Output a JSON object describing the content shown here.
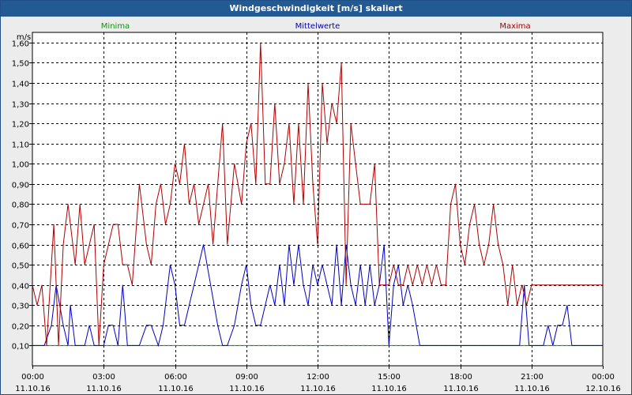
{
  "window": {
    "title": "Windgeschwindigkeit [m/s] skaliert"
  },
  "colors": {
    "minima": "#00a000",
    "mittelwerte": "#0000c0",
    "maxima": "#b00000",
    "grid": "#000000",
    "plot_bg": "#ffffff"
  },
  "chart_data": {
    "type": "line",
    "title": "Windgeschwindigkeit [m/s] skaliert",
    "ylabel": "m/s",
    "xlabel": "",
    "ylim": [
      0.0,
      1.65
    ],
    "xlim": [
      0,
      24
    ],
    "y_ticks": [
      "0,10",
      "0,20",
      "0,30",
      "0,40",
      "0,50",
      "0,60",
      "0,70",
      "0,80",
      "0,90",
      "1,00",
      "1,10",
      "1,20",
      "1,30",
      "1,40",
      "1,50",
      "1,60"
    ],
    "y_tick_values": [
      0.1,
      0.2,
      0.3,
      0.4,
      0.5,
      0.6,
      0.7,
      0.8,
      0.9,
      1.0,
      1.1,
      1.2,
      1.3,
      1.4,
      1.5,
      1.6
    ],
    "x_ticks": [
      {
        "time": "00:00",
        "date": "11.10.16"
      },
      {
        "time": "03:00",
        "date": "11.10.16"
      },
      {
        "time": "06:00",
        "date": "11.10.16"
      },
      {
        "time": "09:00",
        "date": "11.10.16"
      },
      {
        "time": "12:00",
        "date": "11.10.16"
      },
      {
        "time": "15:00",
        "date": "11.10.16"
      },
      {
        "time": "18:00",
        "date": "11.10.16"
      },
      {
        "time": "21:00",
        "date": "11.10.16"
      },
      {
        "time": "00:00",
        "date": "12.10.16"
      }
    ],
    "x_tick_hours": [
      0,
      3,
      6,
      9,
      12,
      15,
      18,
      21,
      24
    ],
    "grid": true,
    "legend_position": "top",
    "series": [
      {
        "name": "Minima",
        "x": [
          0,
          24
        ],
        "values": [
          0.1,
          0.1
        ]
      },
      {
        "name": "Mittelwerte",
        "x": [
          0,
          0.5,
          0.8,
          1.0,
          1.3,
          1.5,
          1.6,
          1.8,
          2.0,
          2.2,
          2.4,
          2.6,
          2.8,
          3.0,
          3.2,
          3.4,
          3.6,
          3.8,
          4.0,
          4.5,
          4.8,
          5.0,
          5.3,
          5.5,
          5.8,
          6.0,
          6.2,
          6.4,
          6.6,
          6.8,
          7.0,
          7.2,
          7.5,
          7.8,
          8.0,
          8.2,
          8.5,
          8.8,
          9.0,
          9.2,
          9.4,
          9.6,
          9.8,
          10.0,
          10.2,
          10.4,
          10.6,
          10.8,
          11.0,
          11.2,
          11.4,
          11.6,
          11.8,
          12.0,
          12.2,
          12.4,
          12.6,
          12.8,
          13.0,
          13.2,
          13.4,
          13.6,
          13.8,
          14.0,
          14.2,
          14.4,
          14.6,
          14.8,
          15.0,
          15.2,
          15.4,
          15.6,
          15.8,
          16.0,
          16.3,
          16.6,
          17.0,
          17.4,
          17.8,
          18.5,
          19.5,
          20.5,
          20.7,
          20.9,
          21.1,
          21.3,
          21.5,
          21.7,
          21.9,
          22.1,
          22.3,
          22.5,
          22.7,
          24
        ],
        "values": [
          0.1,
          0.1,
          0.2,
          0.4,
          0.2,
          0.1,
          0.3,
          0.1,
          0.1,
          0.1,
          0.2,
          0.1,
          0.1,
          0.1,
          0.2,
          0.2,
          0.1,
          0.4,
          0.1,
          0.1,
          0.2,
          0.2,
          0.1,
          0.2,
          0.5,
          0.4,
          0.2,
          0.2,
          0.3,
          0.4,
          0.5,
          0.6,
          0.4,
          0.2,
          0.1,
          0.1,
          0.2,
          0.4,
          0.5,
          0.3,
          0.2,
          0.2,
          0.3,
          0.4,
          0.3,
          0.5,
          0.3,
          0.6,
          0.4,
          0.6,
          0.4,
          0.3,
          0.5,
          0.4,
          0.5,
          0.4,
          0.3,
          0.6,
          0.3,
          0.6,
          0.4,
          0.3,
          0.5,
          0.3,
          0.5,
          0.3,
          0.4,
          0.6,
          0.1,
          0.4,
          0.5,
          0.3,
          0.4,
          0.3,
          0.1,
          0.1,
          0.1,
          0.1,
          0.1,
          0.1,
          0.1,
          0.1,
          0.4,
          0.1,
          0.1,
          0.1,
          0.1,
          0.2,
          0.1,
          0.2,
          0.2,
          0.3,
          0.1,
          0.1
        ]
      },
      {
        "name": "Maxima",
        "x": [
          0,
          0.2,
          0.4,
          0.6,
          0.9,
          1.1,
          1.3,
          1.5,
          1.8,
          2.0,
          2.2,
          2.4,
          2.6,
          2.8,
          3.0,
          3.2,
          3.4,
          3.6,
          3.8,
          4.0,
          4.2,
          4.5,
          4.8,
          5.0,
          5.2,
          5.4,
          5.6,
          5.8,
          6.0,
          6.2,
          6.4,
          6.6,
          6.8,
          7.0,
          7.2,
          7.4,
          7.6,
          7.8,
          8.0,
          8.2,
          8.5,
          8.8,
          9.0,
          9.2,
          9.4,
          9.6,
          9.8,
          10.0,
          10.2,
          10.4,
          10.6,
          10.8,
          11.0,
          11.2,
          11.4,
          11.6,
          11.8,
          12.0,
          12.2,
          12.4,
          12.6,
          12.8,
          13.0,
          13.2,
          13.4,
          13.6,
          13.8,
          14.0,
          14.2,
          14.4,
          14.6,
          14.8,
          15.0,
          15.2,
          15.4,
          15.6,
          15.8,
          16.0,
          16.2,
          16.4,
          16.6,
          16.8,
          17.0,
          17.2,
          17.4,
          17.6,
          17.8,
          18.0,
          18.2,
          18.4,
          18.6,
          18.8,
          19.0,
          19.2,
          19.4,
          19.6,
          19.8,
          20.0,
          20.2,
          20.4,
          20.6,
          20.8,
          21.0,
          21.2,
          21.4,
          21.6,
          21.8,
          22.0,
          22.2,
          22.4,
          22.6,
          22.8,
          23.0,
          23.2,
          23.4,
          23.6,
          23.8,
          24.0
        ],
        "values": [
          0.4,
          0.3,
          0.4,
          0.1,
          0.7,
          0.1,
          0.6,
          0.8,
          0.5,
          0.8,
          0.5,
          0.6,
          0.7,
          0.1,
          0.5,
          0.6,
          0.7,
          0.7,
          0.5,
          0.5,
          0.4,
          0.9,
          0.6,
          0.5,
          0.8,
          0.9,
          0.7,
          0.8,
          1.0,
          0.9,
          1.1,
          0.8,
          0.9,
          0.7,
          0.8,
          0.9,
          0.6,
          0.9,
          1.2,
          0.6,
          1.0,
          0.8,
          1.1,
          1.2,
          0.9,
          1.6,
          0.9,
          0.9,
          1.3,
          0.9,
          1.0,
          1.2,
          0.8,
          1.2,
          0.8,
          1.4,
          0.9,
          0.6,
          1.4,
          1.1,
          1.3,
          1.2,
          1.5,
          0.4,
          1.2,
          1.0,
          0.8,
          0.8,
          0.8,
          1.0,
          0.4,
          0.4,
          0.4,
          0.5,
          0.4,
          0.4,
          0.5,
          0.4,
          0.5,
          0.4,
          0.5,
          0.4,
          0.5,
          0.4,
          0.4,
          0.8,
          0.9,
          0.6,
          0.5,
          0.7,
          0.8,
          0.6,
          0.5,
          0.6,
          0.8,
          0.6,
          0.5,
          0.3,
          0.5,
          0.3,
          0.4,
          0.3,
          0.4,
          0.4,
          0.4,
          0.4,
          0.4,
          0.4,
          0.4,
          0.4,
          0.4,
          0.4,
          0.4,
          0.4,
          0.4,
          0.4,
          0.4,
          0.4
        ]
      }
    ]
  }
}
